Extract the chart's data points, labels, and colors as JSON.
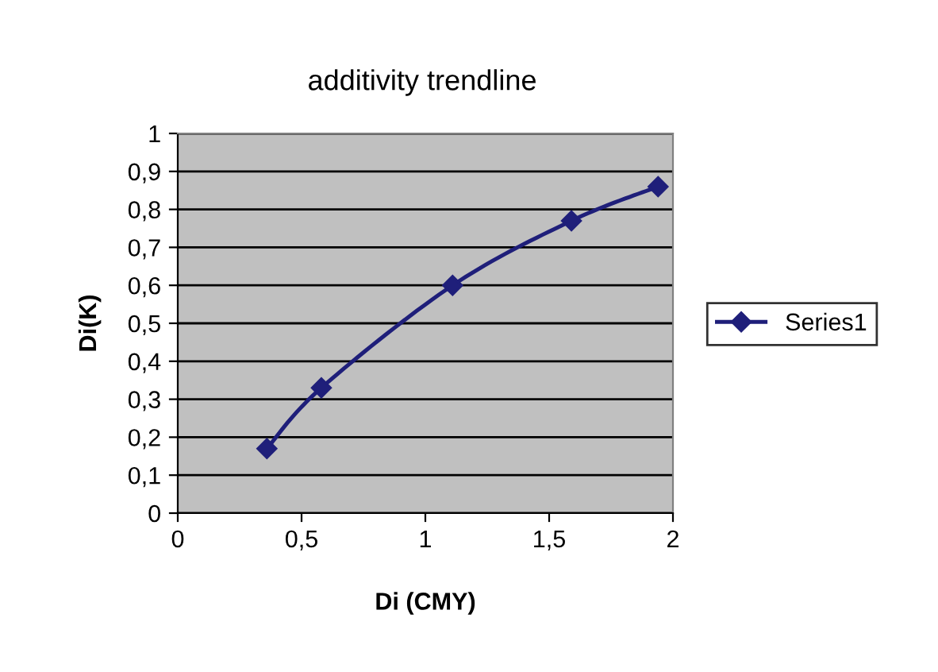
{
  "chart_data": {
    "type": "line",
    "title": "additivity trendline",
    "xlabel": "Di (CMY)",
    "ylabel": "Di(K)",
    "x": [
      0.36,
      0.58,
      1.11,
      1.59,
      1.94
    ],
    "series": [
      {
        "name": "Series1",
        "color": "#1f1f7a",
        "values": [
          0.17,
          0.33,
          0.6,
          0.77,
          0.86
        ]
      }
    ],
    "xlim": [
      0,
      2
    ],
    "xticks": [
      0,
      {
        "value": 0.5,
        "label": "0,5"
      },
      1,
      {
        "value": 1.5,
        "label": "1,5"
      },
      2
    ],
    "ylim": [
      0,
      1
    ],
    "yticks": [
      0,
      {
        "value": 0.1,
        "label": "0,1"
      },
      {
        "value": 0.2,
        "label": "0,2"
      },
      {
        "value": 0.3,
        "label": "0,3"
      },
      {
        "value": 0.4,
        "label": "0,4"
      },
      {
        "value": 0.5,
        "label": "0,5"
      },
      {
        "value": 0.6,
        "label": "0,6"
      },
      {
        "value": 0.7,
        "label": "0,7"
      },
      {
        "value": 0.8,
        "label": "0,8"
      },
      {
        "value": 0.9,
        "label": "0,9"
      },
      1
    ],
    "grid": "y",
    "legend": "right",
    "marker": "diamond",
    "line_style": "solid"
  }
}
